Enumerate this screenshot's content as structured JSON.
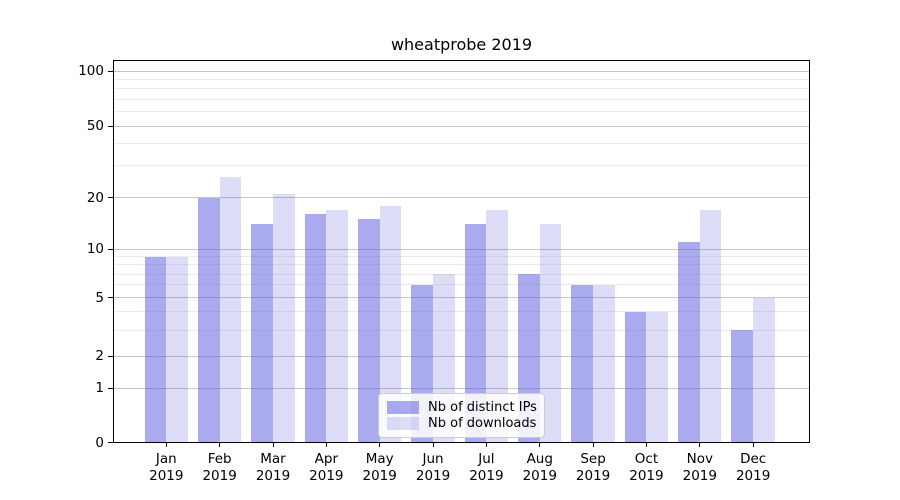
{
  "title": "wheatprobe 2019",
  "chart_data": {
    "type": "bar",
    "title": "wheatprobe 2019",
    "categories": [
      "Jan 2019",
      "Feb 2019",
      "Mar 2019",
      "Apr 2019",
      "May 2019",
      "Jun 2019",
      "Jul 2019",
      "Aug 2019",
      "Sep 2019",
      "Oct 2019",
      "Nov 2019",
      "Dec 2019"
    ],
    "series": [
      {
        "name": "Nb of distinct IPs",
        "color": "rgba(85,85,221,0.5)",
        "swatch_hex": "#aaaaee",
        "values": [
          9,
          20,
          14,
          16,
          15,
          6,
          14,
          7,
          6,
          4,
          11,
          3
        ]
      },
      {
        "name": "Nb of downloads",
        "color": "rgba(85,85,221,0.2)",
        "swatch_hex": "#ddddf8",
        "values": [
          9,
          26,
          21,
          17,
          18,
          7,
          17,
          14,
          6,
          4,
          17,
          5
        ]
      }
    ],
    "yticks": [
      0,
      1,
      2,
      5,
      10,
      20,
      50,
      100
    ],
    "y_minor_gridlines": [
      3,
      4,
      6,
      7,
      8,
      9,
      30,
      40,
      60,
      70,
      80,
      90
    ],
    "ylim": [
      0,
      115
    ],
    "xlabel": "",
    "ylabel": "",
    "scale": "symlog-like (log above 1, linear 0 to 1)",
    "grid": "horizontal major and minor",
    "legend_position": "lower center"
  },
  "colors": {
    "bar_ips": "rgba(85,85,221,0.5)",
    "bar_downloads": "rgba(85,85,221,0.2)",
    "grid_major": "#c6c6c6",
    "grid_minor": "#ececec",
    "frame": "#000000",
    "legend_border": "#cccccc",
    "text": "#000000"
  }
}
